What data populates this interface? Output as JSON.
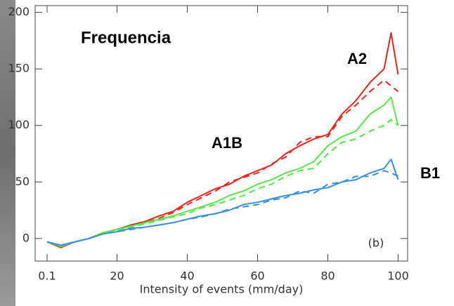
{
  "chart_data": {
    "type": "line",
    "title": "Frequencia",
    "x_label": "Intensity of events (mm/day)",
    "annotations": [
      "A2",
      "A1B",
      "B1",
      "(b)"
    ],
    "x": [
      0.1,
      4,
      8,
      12,
      16,
      20,
      24,
      28,
      32,
      36,
      40,
      44,
      48,
      52,
      56,
      60,
      64,
      68,
      72,
      76,
      80,
      84,
      88,
      92,
      96,
      98,
      100
    ],
    "series": [
      {
        "color": "#e8261f",
        "dash": false,
        "values": [
          -3,
          -8,
          -3,
          0,
          5,
          8,
          12,
          15,
          20,
          24,
          32,
          38,
          44,
          48,
          55,
          60,
          65,
          75,
          82,
          88,
          92,
          110,
          122,
          138,
          150,
          182,
          145
        ]
      },
      {
        "color": "#e8261f",
        "dash": true,
        "values": [
          -3,
          -7,
          -3,
          0,
          5,
          8,
          11,
          14,
          18,
          23,
          30,
          36,
          42,
          50,
          54,
          58,
          66,
          72,
          85,
          90,
          90,
          108,
          118,
          130,
          140,
          135,
          130
        ]
      },
      {
        "color": "#56e84a",
        "dash": false,
        "values": [
          -3,
          -7,
          -3,
          0,
          5,
          8,
          11,
          14,
          17,
          20,
          24,
          28,
          32,
          38,
          42,
          48,
          52,
          58,
          62,
          68,
          82,
          90,
          95,
          110,
          118,
          125,
          100
        ]
      },
      {
        "color": "#56e84a",
        "dash": true,
        "values": [
          -3,
          -7,
          -3,
          0,
          5,
          7,
          10,
          13,
          16,
          19,
          22,
          27,
          30,
          34,
          38,
          44,
          48,
          55,
          60,
          62,
          75,
          85,
          88,
          95,
          100,
          105,
          100
        ]
      },
      {
        "color": "#3a8fe0",
        "dash": false,
        "values": [
          -3,
          -6,
          -3,
          0,
          4,
          6,
          9,
          10,
          12,
          14,
          17,
          20,
          22,
          25,
          30,
          32,
          35,
          38,
          40,
          43,
          45,
          50,
          52,
          58,
          62,
          70,
          52
        ]
      },
      {
        "color": "#3a8fe0",
        "dash": true,
        "values": [
          -3,
          -6,
          -3,
          0,
          4,
          6,
          8,
          10,
          12,
          14,
          17,
          19,
          22,
          26,
          28,
          30,
          34,
          36,
          42,
          40,
          48,
          50,
          55,
          55,
          60,
          58,
          55
        ]
      }
    ],
    "xlim": [
      -3.3,
      102.7
    ],
    "ylim": [
      -20,
      206
    ],
    "xticks": [
      0.1,
      20,
      40,
      60,
      80,
      100
    ],
    "yticks": [
      0,
      50,
      100,
      150,
      200
    ],
    "grid": false
  }
}
